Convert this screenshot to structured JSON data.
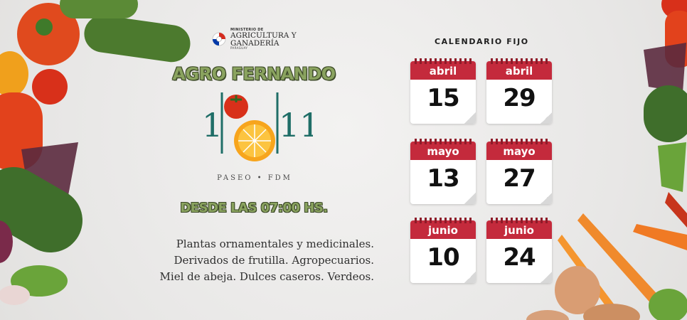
{
  "ministry": {
    "line1": "MINISTERIO DE",
    "line2": "AGRICULTURA Y",
    "line3": "GANADERÍA",
    "line4": "PARAGUAY"
  },
  "title": "AGRO FERNANDO",
  "logo": {
    "digits_left": "1",
    "digits_right": "11",
    "caption": "PASEO • FDM"
  },
  "hours": "DESDE LAS 07:00 HS.",
  "products": [
    "Plantas ornamentales y medicinales.",
    "Derivados de frutilla. Agropecuarios.",
    "Miel de abeja. Dulces caseros. Verdeos."
  ],
  "calendar": {
    "title": "CALENDARIO FIJO",
    "dates": [
      {
        "month": "abril",
        "day": "15"
      },
      {
        "month": "abril",
        "day": "29"
      },
      {
        "month": "mayo",
        "day": "13"
      },
      {
        "month": "mayo",
        "day": "27"
      },
      {
        "month": "junio",
        "day": "10"
      },
      {
        "month": "junio",
        "day": "24"
      }
    ]
  },
  "colors": {
    "accent_green": "#8aa35f",
    "calendar_red": "#c42a3c",
    "logo_teal": "#1f6e67"
  }
}
